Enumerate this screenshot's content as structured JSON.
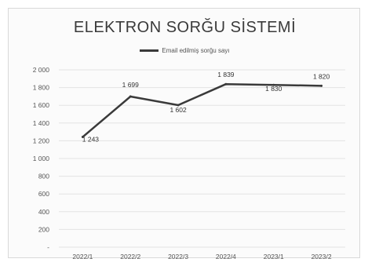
{
  "chart_data": {
    "type": "line",
    "title": "ELEKTRON SORĞU SİSTEMİ",
    "categories": [
      "2022/1",
      "2022/2",
      "2022/3",
      "2022/4",
      "2023/1",
      "2023/2"
    ],
    "series": [
      {
        "name": "Email edilmiş sorğu sayı",
        "values": [
          1243,
          1699,
          1602,
          1839,
          1830,
          1820
        ],
        "color": "#3a3a3a"
      }
    ],
    "data_labels": [
      "1 243",
      "1 699",
      "1 602",
      "1 839",
      "1 830",
      "1 820"
    ],
    "ylim": [
      0,
      2000
    ],
    "yticks": [
      0,
      200,
      400,
      600,
      800,
      1000,
      1200,
      1400,
      1600,
      1800,
      2000
    ],
    "ytick_labels": [
      "-",
      "200",
      "400",
      "600",
      "800",
      "1 000",
      "1 200",
      "1 400",
      "1 600",
      "1 800",
      "2 000"
    ],
    "grid": true,
    "legend_position": "top"
  }
}
